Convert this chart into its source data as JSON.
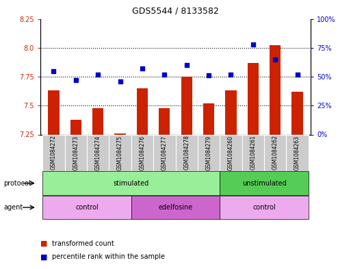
{
  "title": "GDS5544 / 8133582",
  "samples": [
    "GSM1084272",
    "GSM1084273",
    "GSM1084274",
    "GSM1084275",
    "GSM1084276",
    "GSM1084277",
    "GSM1084278",
    "GSM1084279",
    "GSM1084260",
    "GSM1084261",
    "GSM1084262",
    "GSM1084263"
  ],
  "transformed_counts": [
    7.63,
    7.38,
    7.48,
    7.26,
    7.65,
    7.48,
    7.75,
    7.52,
    7.63,
    7.87,
    8.02,
    7.62
  ],
  "percentile_ranks": [
    55,
    47,
    52,
    46,
    57,
    52,
    60,
    51,
    52,
    78,
    65,
    52
  ],
  "ylim_left": [
    7.25,
    8.25
  ],
  "ylim_right": [
    0,
    100
  ],
  "yticks_left": [
    7.25,
    7.5,
    7.75,
    8.0,
    8.25
  ],
  "yticks_right": [
    0,
    25,
    50,
    75,
    100
  ],
  "ytick_labels_right": [
    "0%",
    "25%",
    "50%",
    "75%",
    "100%"
  ],
  "hlines": [
    7.5,
    7.75,
    8.0
  ],
  "bar_color": "#cc2200",
  "dot_color": "#0000cc",
  "bar_bottom": 7.25,
  "protocol_groups": [
    {
      "label": "stimulated",
      "start": 0,
      "end": 7,
      "color": "#99ee99"
    },
    {
      "label": "unstimulated",
      "start": 8,
      "end": 11,
      "color": "#55cc55"
    }
  ],
  "agent_groups": [
    {
      "label": "control",
      "start": 0,
      "end": 3,
      "color": "#eeaaee"
    },
    {
      "label": "edelfosine",
      "start": 4,
      "end": 7,
      "color": "#cc66cc"
    },
    {
      "label": "control",
      "start": 8,
      "end": 11,
      "color": "#eeaaee"
    }
  ],
  "protocol_label": "protocol",
  "agent_label": "agent",
  "bar_color_legend": "#cc2200",
  "dot_color_legend": "#0000cc",
  "legend_label_bar": "transformed count",
  "legend_label_dot": "percentile rank within the sample",
  "tick_color_left": "#cc2200",
  "tick_color_right": "#0000cc",
  "dotted_line_color": "#000000",
  "bg_color": "#ffffff",
  "bar_width": 0.5
}
